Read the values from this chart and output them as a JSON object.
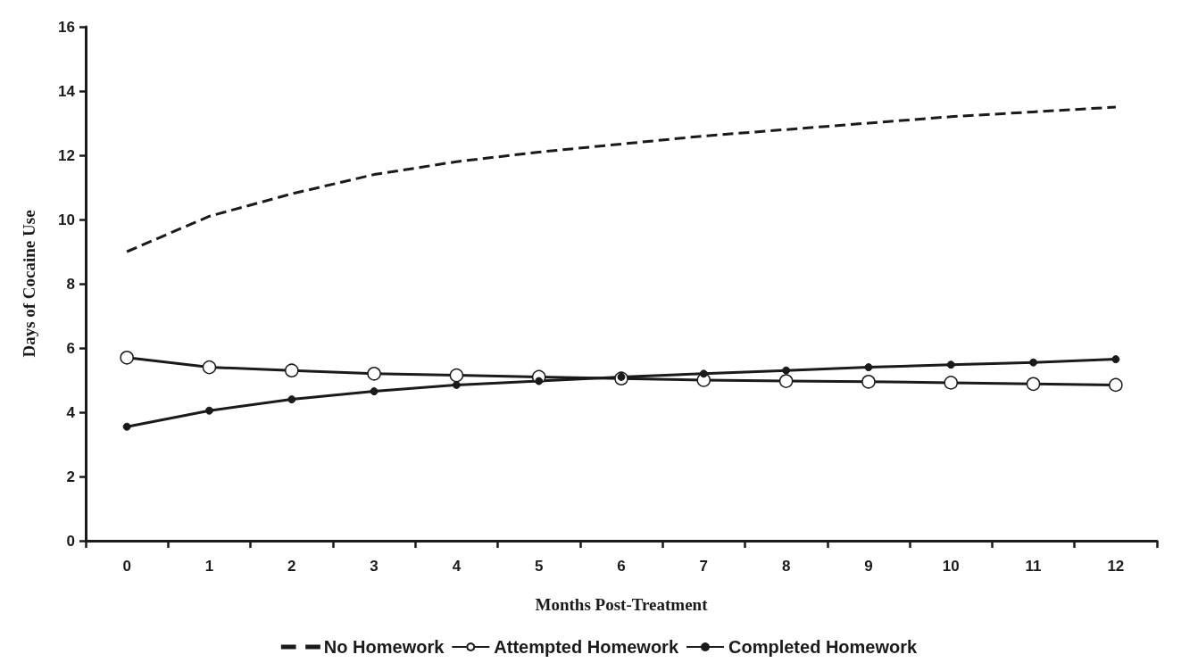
{
  "chart_data": {
    "type": "line",
    "xlabel": "Months Post-Treatment",
    "ylabel": "Days of Cocaine Use",
    "categories": [
      "0",
      "1",
      "2",
      "3",
      "4",
      "5",
      "6",
      "7",
      "8",
      "9",
      "10",
      "11",
      "12"
    ],
    "series": [
      {
        "name": "No Homework",
        "color": "#1a1a1a",
        "line_style": "dashed",
        "marker": "none",
        "values": [
          9.0,
          10.1,
          10.8,
          11.4,
          11.8,
          12.1,
          12.35,
          12.6,
          12.8,
          13.0,
          13.2,
          13.35,
          13.5
        ]
      },
      {
        "name": "Attempted Homework",
        "color": "#1a1a1a",
        "line_style": "solid",
        "marker": "circle",
        "values": [
          5.7,
          5.4,
          5.3,
          5.2,
          5.15,
          5.1,
          5.05,
          5.0,
          4.97,
          4.95,
          4.92,
          4.88,
          4.85
        ]
      },
      {
        "name": "Completed Homework",
        "color": "#1a1a1a",
        "line_style": "solid",
        "marker": "circle",
        "values": [
          3.55,
          4.05,
          4.4,
          4.65,
          4.85,
          4.97,
          5.1,
          5.2,
          5.3,
          5.4,
          5.48,
          5.55,
          5.65
        ]
      }
    ],
    "ylim": [
      0,
      16
    ],
    "yticks": [
      0,
      2,
      4,
      6,
      8,
      10,
      12,
      14,
      16
    ],
    "grid": false,
    "legend": "bottom"
  }
}
